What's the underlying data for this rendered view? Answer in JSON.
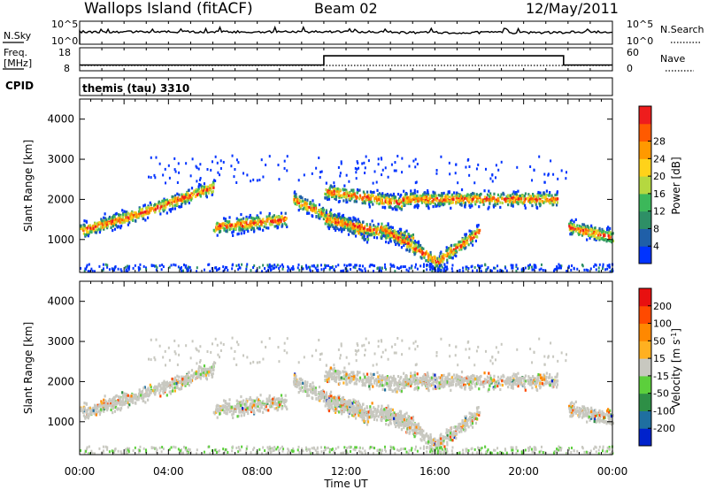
{
  "header": {
    "station": "Wallops Island (fitACF)",
    "beam": "Beam 02",
    "date": "12/May/2011"
  },
  "noise_panel": {
    "left_label": "N.Sky",
    "right_label": "N.Search",
    "left_ticks": [
      "10^5",
      "10^0"
    ],
    "right_ticks": [
      "10^5",
      "10^0"
    ],
    "level": 0.5
  },
  "freq_panel": {
    "left_label_1": "Freq.",
    "left_label_2": "[MHz]",
    "right_label": "Nave",
    "left_ticks": [
      "18",
      "8"
    ],
    "right_ticks": [
      "60",
      "0"
    ],
    "freq_low_mhz": 10.5,
    "freq_high_mhz": 14.5,
    "switch_hours": [
      11.0,
      21.8
    ]
  },
  "cpid": {
    "label": "CPID",
    "program": "themis (tau) 3310"
  },
  "chart_data": [
    {
      "type": "heatmap",
      "name": "power",
      "ylabel": "Slant Range [km]",
      "xlabel": "Time UT",
      "xlim": [
        0,
        24
      ],
      "ylim": [
        180,
        4500
      ],
      "x_ticks": [
        "00:00",
        "04:00",
        "08:00",
        "12:00",
        "16:00",
        "20:00",
        "00:00"
      ],
      "y_ticks": [
        1000,
        2000,
        3000,
        4000
      ],
      "colorbar": {
        "label": "Power [dB]",
        "ticks": [
          "4",
          "8",
          "12",
          "16",
          "20",
          "24",
          "28"
        ],
        "colors": [
          "#0033ff",
          "#1f5fa8",
          "#2e8f66",
          "#3cb85a",
          "#b5d840",
          "#ffd21a",
          "#ff9900",
          "#ff5a00",
          "#ee1d1d"
        ]
      },
      "bands": [
        {
          "t0": 0.0,
          "t1": 3.0,
          "r0": 1200,
          "r1": 1700
        },
        {
          "t0": 3.0,
          "t1": 6.0,
          "r0": 1700,
          "r1": 2300
        },
        {
          "t0": 6.0,
          "t1": 9.3,
          "r0": 1300,
          "r1": 1500
        },
        {
          "t0": 9.6,
          "t1": 13.0,
          "r0": 2000,
          "r1": 1100
        },
        {
          "t0": 11.0,
          "t1": 14.5,
          "r0": 2200,
          "r1": 1900
        },
        {
          "t0": 11.0,
          "t1": 15.0,
          "r0": 1500,
          "r1": 1000
        },
        {
          "t0": 13.5,
          "t1": 16.2,
          "r0": 1300,
          "r1": 400
        },
        {
          "t0": 16.2,
          "t1": 18.0,
          "r0": 500,
          "r1": 1200
        },
        {
          "t0": 14.5,
          "t1": 21.5,
          "r0": 2000,
          "r1": 2000
        },
        {
          "t0": 22.0,
          "t1": 24.0,
          "r0": 1300,
          "r1": 1050
        }
      ]
    },
    {
      "type": "heatmap",
      "name": "velocity",
      "ylabel": "Slant Range [km]",
      "xlabel": "Time UT",
      "xlim": [
        0,
        24
      ],
      "ylim": [
        180,
        4500
      ],
      "x_ticks": [
        "00:00",
        "04:00",
        "08:00",
        "12:00",
        "16:00",
        "20:00",
        "00:00"
      ],
      "y_ticks": [
        1000,
        2000,
        3000,
        4000
      ],
      "colorbar": {
        "label": "Velocity [m s-1]",
        "ticks": [
          "200",
          "100",
          "50",
          "15",
          "-15",
          "-50",
          "-100",
          "-200"
        ],
        "colors": [
          "#0022cc",
          "#1f6fa0",
          "#2e8f46",
          "#5ccf3c",
          "#c8c8c0",
          "#ffb020",
          "#ff8800",
          "#ff4a00",
          "#e81010"
        ]
      }
    }
  ]
}
